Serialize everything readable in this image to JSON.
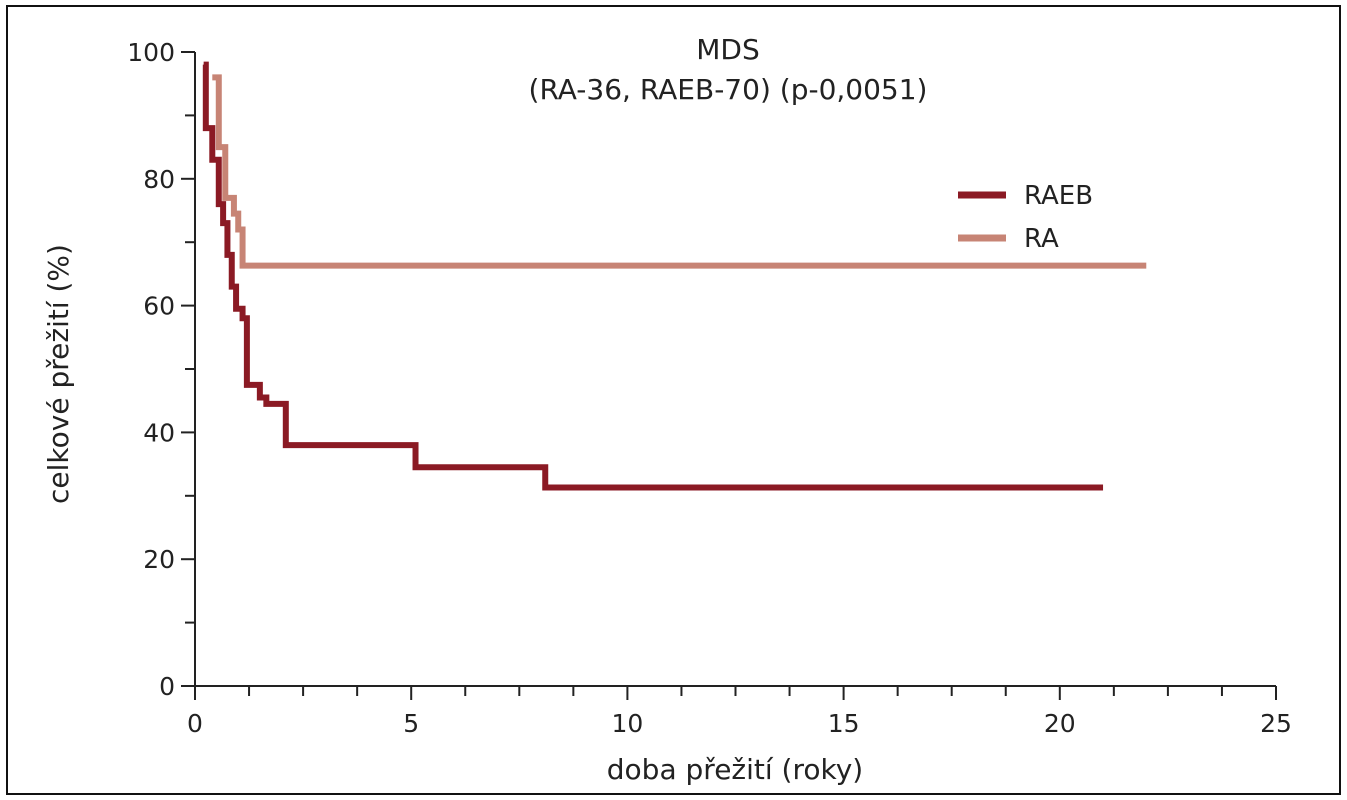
{
  "chart_data": {
    "type": "line",
    "title": "MDS",
    "subtitle": "(RA-36, RAEB-70) (p-0,0051)",
    "xlabel": "doba přežití (roky)",
    "ylabel": "celkové přežití (%)",
    "xlim": [
      0,
      25
    ],
    "ylim": [
      0,
      100
    ],
    "x_ticks": [
      0,
      5,
      10,
      15,
      20,
      25
    ],
    "x_minor_step": 1.25,
    "y_ticks": [
      0,
      20,
      40,
      60,
      80,
      100
    ],
    "y_minor_step": 10,
    "grid": false,
    "legend": "top-right",
    "series": [
      {
        "name": "RAEB",
        "color": "#8b1a24",
        "step": true,
        "points": [
          [
            0.2,
            98
          ],
          [
            0.25,
            88
          ],
          [
            0.4,
            83
          ],
          [
            0.55,
            76
          ],
          [
            0.65,
            73
          ],
          [
            0.75,
            68
          ],
          [
            0.85,
            63
          ],
          [
            0.95,
            59.5
          ],
          [
            1.1,
            58
          ],
          [
            1.2,
            47.5
          ],
          [
            1.5,
            45.5
          ],
          [
            1.65,
            44.5
          ],
          [
            2.1,
            38
          ],
          [
            5.1,
            34.5
          ],
          [
            8.1,
            31.3
          ],
          [
            21.0,
            31.3
          ]
        ]
      },
      {
        "name": "RA",
        "color": "#c78475",
        "step": true,
        "points": [
          [
            0.4,
            96
          ],
          [
            0.55,
            85
          ],
          [
            0.7,
            77
          ],
          [
            0.9,
            74.5
          ],
          [
            1.0,
            72
          ],
          [
            1.1,
            66.3
          ],
          [
            22.0,
            66.3
          ]
        ]
      }
    ]
  }
}
